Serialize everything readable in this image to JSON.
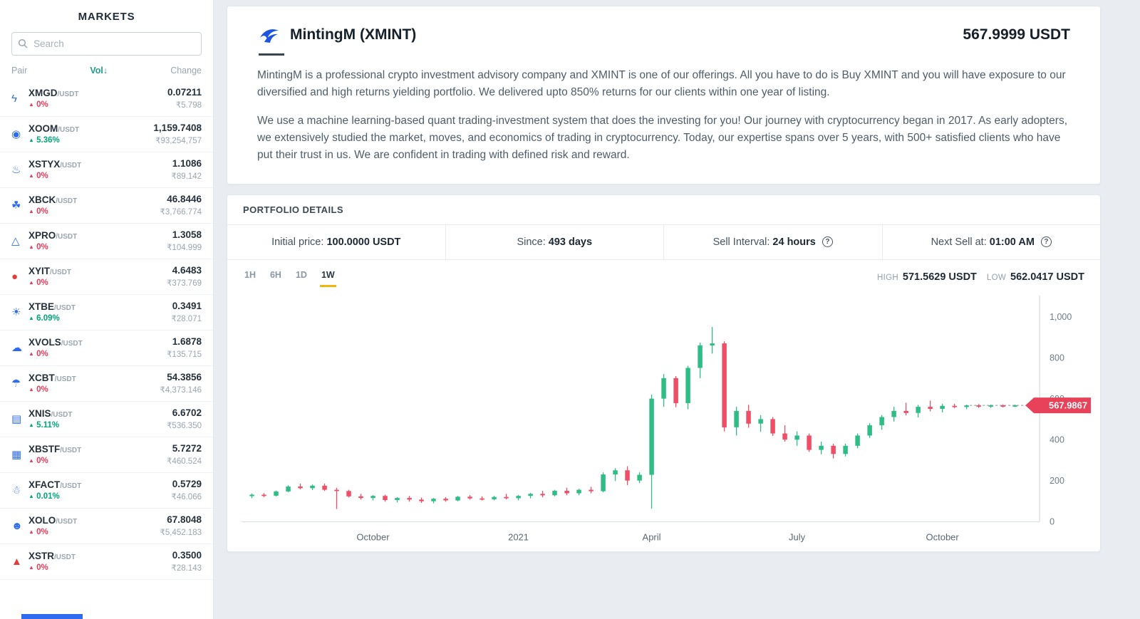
{
  "sidebar": {
    "title": "MARKETS",
    "search_placeholder": "Search",
    "columns": {
      "pair": "Pair",
      "vol": "Vol",
      "vol_arrow": "↓",
      "change": "Change"
    },
    "change_icon": "▲",
    "markets": [
      {
        "pair": "XMGD",
        "quote": "/USDT",
        "icon": "lightning-icon",
        "glyph": "ϟ",
        "icon_color": "#2e6bf0",
        "change": "0%",
        "gain": false,
        "price": "0.07211",
        "volume": "₹5.798"
      },
      {
        "pair": "XOOM",
        "quote": "/USDT",
        "icon": "swirl-icon",
        "glyph": "◉",
        "icon_color": "#2e6bf0",
        "change": "5.36%",
        "gain": true,
        "price": "1,159.7408",
        "volume": "₹93,254,757"
      },
      {
        "pair": "XSTYX",
        "quote": "/USDT",
        "icon": "flame-icon",
        "glyph": "♨",
        "icon_color": "#2e6bf0",
        "change": "0%",
        "gain": false,
        "price": "1.1086",
        "volume": "₹89.142"
      },
      {
        "pair": "XBCK",
        "quote": "/USDT",
        "icon": "leaf-icon",
        "glyph": "☘",
        "icon_color": "#2e6bf0",
        "change": "0%",
        "gain": false,
        "price": "46.8446",
        "volume": "₹3,766.774"
      },
      {
        "pair": "XPRO",
        "quote": "/USDT",
        "icon": "mountain-icon",
        "glyph": "△",
        "icon_color": "#2e6bf0",
        "change": "0%",
        "gain": false,
        "price": "1.3058",
        "volume": "₹104.999"
      },
      {
        "pair": "XYIT",
        "quote": "/USDT",
        "icon": "apple-icon",
        "glyph": "●",
        "icon_color": "#e23c3c",
        "change": "0%",
        "gain": false,
        "price": "4.6483",
        "volume": "₹373.769"
      },
      {
        "pair": "XTBE",
        "quote": "/USDT",
        "icon": "sun-icon",
        "glyph": "☀",
        "icon_color": "#2e6bf0",
        "change": "6.09%",
        "gain": true,
        "price": "0.3491",
        "volume": "₹28.071"
      },
      {
        "pair": "XVOLS",
        "quote": "/USDT",
        "icon": "cloud-icon",
        "glyph": "☁",
        "icon_color": "#2e6bf0",
        "change": "0%",
        "gain": false,
        "price": "1.6878",
        "volume": "₹135.715"
      },
      {
        "pair": "XCBT",
        "quote": "/USDT",
        "icon": "umbrella-icon",
        "glyph": "☂",
        "icon_color": "#2e6bf0",
        "change": "0%",
        "gain": false,
        "price": "54.3856",
        "volume": "₹4,373.146"
      },
      {
        "pair": "XNIS",
        "quote": "/USDT",
        "icon": "keyboard-icon",
        "glyph": "▤",
        "icon_color": "#2e6bf0",
        "change": "5.11%",
        "gain": true,
        "price": "6.6702",
        "volume": "₹536.350"
      },
      {
        "pair": "XBSTF",
        "quote": "/USDT",
        "icon": "basket-icon",
        "glyph": "▦",
        "icon_color": "#2e6bf0",
        "change": "0%",
        "gain": false,
        "price": "5.7272",
        "volume": "₹460.524"
      },
      {
        "pair": "XFACT",
        "quote": "/USDT",
        "icon": "skier-icon",
        "glyph": "☃",
        "icon_color": "#2e6bf0",
        "change": "0.01%",
        "gain": true,
        "price": "0.5729",
        "volume": "₹46.066"
      },
      {
        "pair": "XOLO",
        "quote": "/USDT",
        "icon": "person-icon",
        "glyph": "☻",
        "icon_color": "#2e6bf0",
        "change": "0%",
        "gain": false,
        "price": "67.8048",
        "volume": "₹5,452.183"
      },
      {
        "pair": "XSTR",
        "quote": "/USDT",
        "icon": "flask-icon",
        "glyph": "▲",
        "icon_color": "#e23c3c",
        "change": "0%",
        "gain": false,
        "price": "0.3500",
        "volume": "₹28.143"
      }
    ]
  },
  "asset": {
    "name": "MintingM (XMINT)",
    "price": "567.9999 USDT",
    "description_1": "MintingM is a professional crypto investment advisory company and XMINT is one of our offerings. All you have to do is Buy XMINT and you will have exposure to our diversified and high returns yielding portfolio. We delivered upto 850% returns for our clients within one year of listing.",
    "description_2": "We use a machine learning-based quant trading-investment system that does the investing for you! Our journey with cryptocurrency began in 2017. As early adopters, we extensively studied the market, moves, and economics of trading in cryptocurrency. Today, our expertise spans over 5 years, with 500+ satisfied clients who have put their trust in us. We are confident in trading with defined risk and reward."
  },
  "portfolio": {
    "title": "PORTFOLIO DETAILS",
    "info_icon": "?",
    "stats": [
      {
        "label": "Initial price:",
        "value": "100.0000 USDT",
        "info": false
      },
      {
        "label": "Since:",
        "value": "493 days",
        "info": false
      },
      {
        "label": "Sell Interval:",
        "value": "24 hours",
        "info": true
      },
      {
        "label": "Next Sell at:",
        "value": "01:00 AM",
        "info": true
      }
    ],
    "timeframes": [
      "1H",
      "6H",
      "1D",
      "1W"
    ],
    "active_timeframe": "1W",
    "high_label": "HIGH",
    "high_value": "571.5629 USDT",
    "low_label": "LOW",
    "low_value": "562.0417 USDT"
  },
  "chart_data": {
    "type": "candlestick",
    "timeframe": "1W",
    "ylim": [
      0,
      1000
    ],
    "y_ticks": [
      0,
      200,
      400,
      600,
      800,
      1000
    ],
    "x_labels": [
      {
        "label": "October",
        "index": 10
      },
      {
        "label": "2021",
        "index": 22
      },
      {
        "label": "April",
        "index": 33
      },
      {
        "label": "July",
        "index": 45
      },
      {
        "label": "October",
        "index": 57
      }
    ],
    "last_price": 567.9867,
    "up_color": "#2ebd85",
    "down_color": "#ef4e66",
    "candles": [
      [
        125,
        138,
        115,
        132
      ],
      [
        132,
        140,
        120,
        127
      ],
      [
        127,
        152,
        124,
        148
      ],
      [
        148,
        178,
        144,
        172
      ],
      [
        172,
        186,
        158,
        164
      ],
      [
        164,
        182,
        155,
        176
      ],
      [
        176,
        186,
        150,
        156
      ],
      [
        156,
        166,
        62,
        150
      ],
      [
        150,
        156,
        118,
        124
      ],
      [
        124,
        136,
        108,
        116
      ],
      [
        116,
        130,
        104,
        126
      ],
      [
        126,
        132,
        98,
        106
      ],
      [
        106,
        120,
        94,
        116
      ],
      [
        116,
        126,
        98,
        108
      ],
      [
        108,
        118,
        92,
        100
      ],
      [
        100,
        116,
        90,
        112
      ],
      [
        112,
        120,
        98,
        104
      ],
      [
        104,
        126,
        100,
        122
      ],
      [
        122,
        130,
        108,
        114
      ],
      [
        114,
        124,
        104,
        110
      ],
      [
        110,
        126,
        104,
        121
      ],
      [
        121,
        136,
        109,
        115
      ],
      [
        115,
        131,
        105,
        126
      ],
      [
        126,
        141,
        114,
        136
      ],
      [
        136,
        151,
        119,
        129
      ],
      [
        129,
        156,
        124,
        151
      ],
      [
        151,
        166,
        129,
        139
      ],
      [
        139,
        161,
        129,
        156
      ],
      [
        156,
        171,
        139,
        149
      ],
      [
        149,
        241,
        144,
        231
      ],
      [
        231,
        261,
        199,
        251
      ],
      [
        251,
        271,
        179,
        201
      ],
      [
        201,
        241,
        189,
        229
      ],
      [
        229,
        621,
        64,
        601
      ],
      [
        601,
        721,
        561,
        701
      ],
      [
        701,
        711,
        559,
        579
      ],
      [
        579,
        761,
        549,
        751
      ],
      [
        751,
        875,
        701,
        861
      ],
      [
        861,
        951,
        821,
        871
      ],
      [
        871,
        881,
        441,
        461
      ],
      [
        461,
        561,
        421,
        541
      ],
      [
        541,
        571,
        459,
        479
      ],
      [
        479,
        521,
        439,
        501
      ],
      [
        501,
        511,
        419,
        431
      ],
      [
        431,
        471,
        391,
        401
      ],
      [
        401,
        441,
        371,
        421
      ],
      [
        421,
        431,
        341,
        351
      ],
      [
        351,
        391,
        329,
        371
      ],
      [
        371,
        381,
        309,
        331
      ],
      [
        331,
        381,
        319,
        371
      ],
      [
        371,
        431,
        359,
        421
      ],
      [
        421,
        481,
        409,
        471
      ],
      [
        471,
        521,
        449,
        511
      ],
      [
        511,
        561,
        489,
        541
      ],
      [
        541,
        581,
        519,
        531
      ],
      [
        531,
        571,
        509,
        561
      ],
      [
        561,
        591,
        539,
        551
      ],
      [
        551,
        576,
        534,
        566
      ],
      [
        566,
        576,
        554,
        560
      ],
      [
        560,
        572,
        550,
        568
      ],
      [
        568,
        574,
        556,
        564
      ],
      [
        564,
        572,
        556,
        568
      ],
      [
        568,
        573,
        558,
        566
      ],
      [
        566,
        572,
        560,
        568
      ]
    ]
  }
}
